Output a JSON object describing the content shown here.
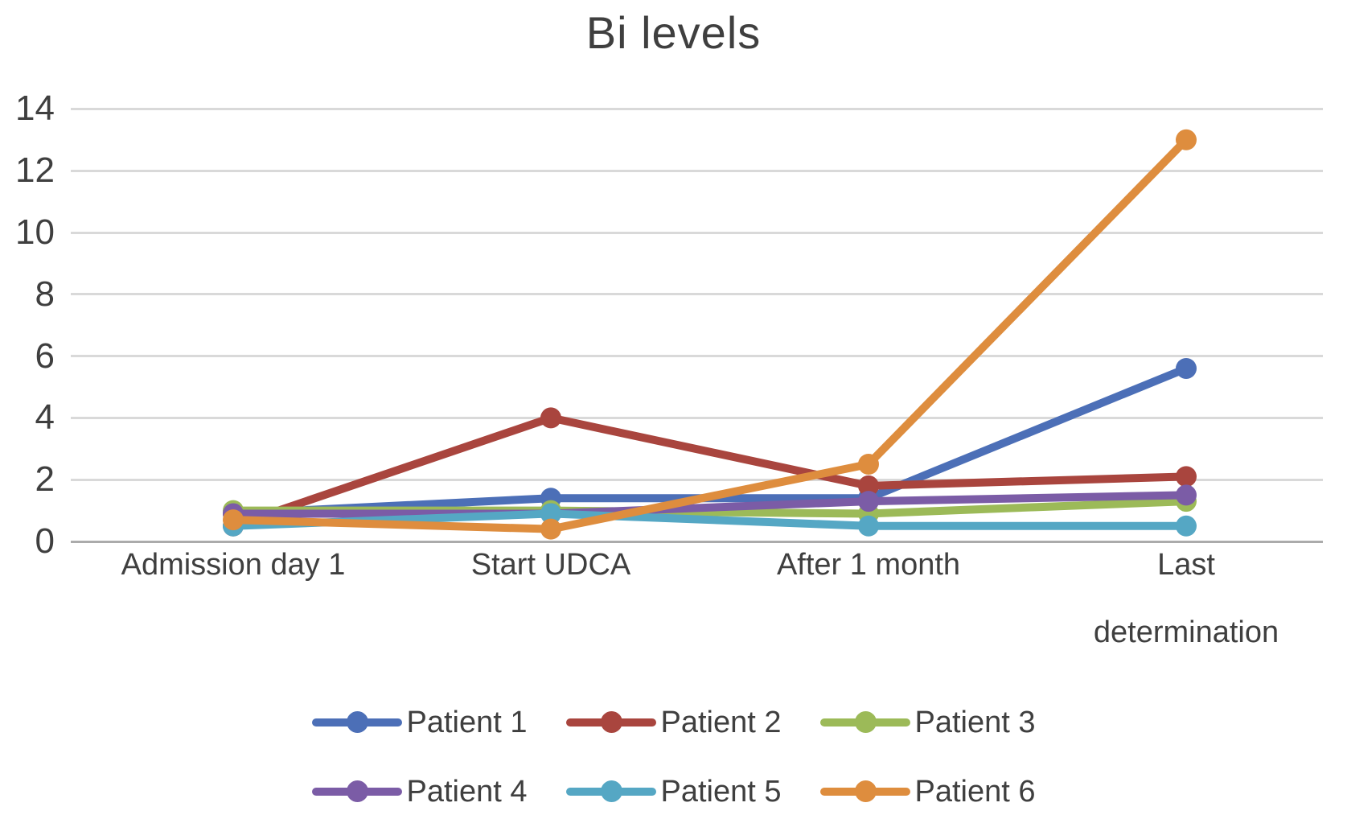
{
  "title": "Bi levels",
  "chart_data": {
    "type": "line",
    "title": "Bi levels",
    "xlabel": "",
    "ylabel": "",
    "categories": [
      "Admission day 1",
      "Start UDCA",
      "After 1 month",
      "Last determination"
    ],
    "category_display": [
      "Admission day 1",
      "Start UDCA",
      "After 1 month",
      "Last\ndetermination"
    ],
    "series": [
      {
        "name": "Patient 1",
        "color": "#4C6FB7",
        "values": [
          0.9,
          1.4,
          1.4,
          5.6
        ]
      },
      {
        "name": "Patient 2",
        "color": "#A9453E",
        "values": [
          0.5,
          4.0,
          1.8,
          2.1
        ]
      },
      {
        "name": "Patient 3",
        "color": "#9CBA58",
        "values": [
          1.0,
          1.0,
          0.9,
          1.3
        ]
      },
      {
        "name": "Patient 4",
        "color": "#7B5CA6",
        "values": [
          0.9,
          0.9,
          1.3,
          1.5
        ]
      },
      {
        "name": "Patient 5",
        "color": "#55A7C4",
        "values": [
          0.5,
          0.9,
          0.5,
          0.5
        ]
      },
      {
        "name": "Patient 6",
        "color": "#DE8D3E",
        "values": [
          0.7,
          0.4,
          2.5,
          13.0
        ]
      }
    ],
    "ylim": [
      0,
      14
    ],
    "yticks": [
      0,
      2,
      4,
      6,
      8,
      10,
      12,
      14
    ],
    "grid": true,
    "legend_position": "bottom",
    "legend_rows": [
      [
        0,
        1,
        2
      ],
      [
        3,
        4,
        5
      ]
    ]
  },
  "colors": {
    "gridline": "#D9D9D9",
    "axis_line": "#ABABAB",
    "text": "#3F3F3F",
    "background": "#FFFFFF"
  }
}
